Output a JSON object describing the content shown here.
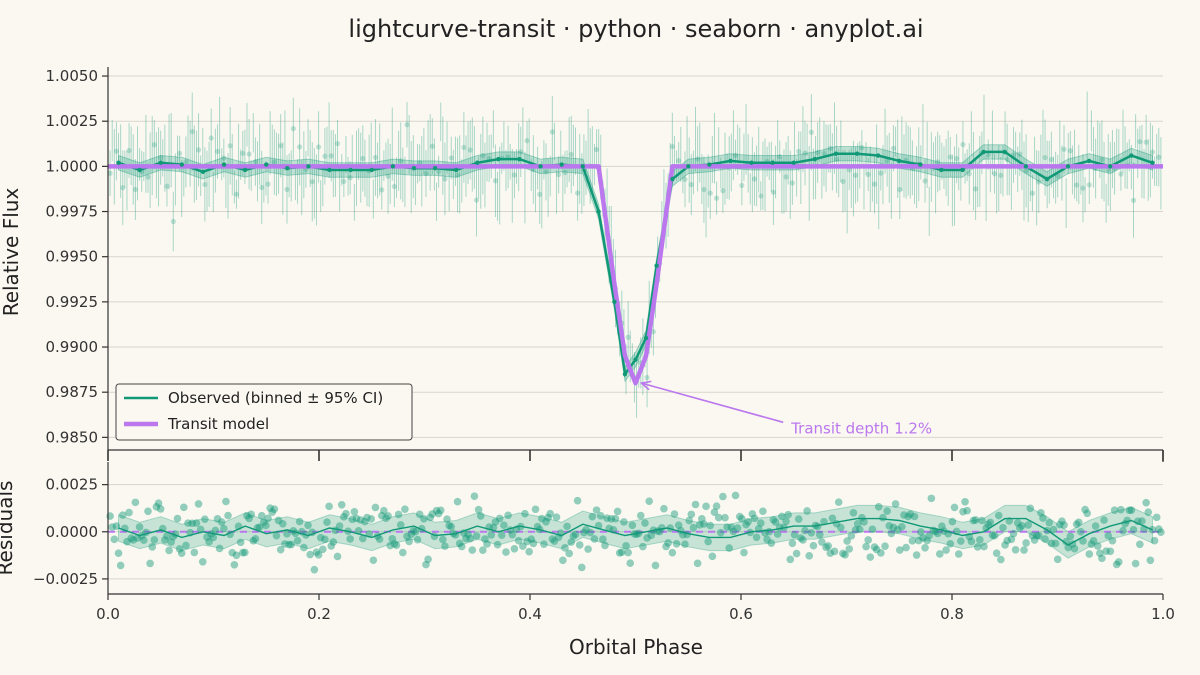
{
  "chart_data": [
    {
      "type": "line",
      "title": "lightcurve-transit · python · seaborn · anyplot.ai",
      "ylabel": "Relative Flux",
      "xlim": [
        0.0,
        1.0
      ],
      "ylim": [
        0.9843,
        1.0055
      ],
      "y_ticks": [
        0.985,
        0.9875,
        0.99,
        0.9925,
        0.995,
        0.9975,
        1.0,
        1.0025,
        1.005
      ],
      "y_tick_labels": [
        "0.9850",
        "0.9875",
        "0.9900",
        "0.9925",
        "0.9950",
        "0.9975",
        "1.0000",
        "1.0025",
        "1.0050"
      ],
      "grid": true,
      "legend_position": "lower-left",
      "colors": {
        "observed": "#119977",
        "model": "#BB77EE",
        "background": "#FAF8F1"
      },
      "series": [
        {
          "name": "Observed (binned ± 95% CI)",
          "x": [
            0.01,
            0.03,
            0.05,
            0.07,
            0.09,
            0.11,
            0.13,
            0.15,
            0.17,
            0.19,
            0.21,
            0.23,
            0.25,
            0.27,
            0.29,
            0.31,
            0.33,
            0.35,
            0.37,
            0.39,
            0.41,
            0.43,
            0.45,
            0.465,
            0.48,
            0.49,
            0.5,
            0.51,
            0.52,
            0.535,
            0.55,
            0.57,
            0.59,
            0.61,
            0.63,
            0.65,
            0.67,
            0.69,
            0.71,
            0.73,
            0.75,
            0.77,
            0.79,
            0.81,
            0.83,
            0.85,
            0.87,
            0.89,
            0.91,
            0.93,
            0.95,
            0.97,
            0.99
          ],
          "y": [
            1.0002,
            0.9998,
            1.0002,
            1.0001,
            0.9997,
            1.0001,
            0.9998,
            1.0001,
            0.9999,
            1.0,
            0.9998,
            0.9998,
            0.9998,
            1.0,
            0.9999,
            0.9999,
            0.9998,
            1.0002,
            1.0004,
            1.0004,
            1.0,
            1.0001,
            1.0,
            0.9975,
            0.9925,
            0.9885,
            0.9893,
            0.9905,
            0.9945,
            0.9993,
            1.0,
            1.0001,
            1.0003,
            1.0002,
            1.0002,
            1.0002,
            1.0004,
            1.0007,
            1.0007,
            1.0006,
            1.0003,
            1.0001,
            0.9998,
            0.9998,
            1.0008,
            1.0008,
            1.0,
            0.9993,
            1.0,
            1.0003,
            1.0,
            1.0006,
            1.0002
          ],
          "ci_halfwidth": 0.0004
        },
        {
          "name": "Transit model",
          "x": [
            0.0,
            0.465,
            0.48,
            0.49,
            0.5,
            0.51,
            0.52,
            0.535,
            1.0
          ],
          "y": [
            1.0,
            1.0,
            0.9935,
            0.9895,
            0.988,
            0.9895,
            0.9935,
            1.0,
            1.0
          ]
        }
      ],
      "annotations": [
        {
          "text": "Transit depth 1.2%",
          "x": 0.64,
          "y": 0.9855,
          "arrow_to": {
            "x": 0.5,
            "y": 0.988
          }
        }
      ]
    },
    {
      "type": "scatter",
      "xlabel": "Orbital Phase",
      "ylabel": "Residuals",
      "xlim": [
        0.0,
        1.0
      ],
      "ylim": [
        -0.0033,
        0.0037
      ],
      "x_ticks": [
        0.0,
        0.2,
        0.4,
        0.6,
        0.8,
        1.0
      ],
      "x_tick_labels": [
        "0.0",
        "0.2",
        "0.4",
        "0.6",
        "0.8",
        "1.0"
      ],
      "y_ticks": [
        -0.0025,
        0.0,
        0.0025
      ],
      "y_tick_labels": [
        "−0.0025",
        "0.0000",
        "0.0025"
      ],
      "grid": true,
      "zero_line": {
        "y": 0.0,
        "style": "dashed",
        "color": "#BB77EE"
      },
      "binned_residuals": {
        "x": [
          0.01,
          0.03,
          0.05,
          0.07,
          0.09,
          0.11,
          0.13,
          0.15,
          0.17,
          0.19,
          0.21,
          0.23,
          0.25,
          0.27,
          0.29,
          0.31,
          0.33,
          0.35,
          0.37,
          0.39,
          0.41,
          0.43,
          0.45,
          0.47,
          0.49,
          0.51,
          0.53,
          0.55,
          0.57,
          0.59,
          0.61,
          0.63,
          0.65,
          0.67,
          0.69,
          0.71,
          0.73,
          0.75,
          0.77,
          0.79,
          0.81,
          0.83,
          0.85,
          0.87,
          0.89,
          0.91,
          0.93,
          0.95,
          0.97,
          0.99
        ],
        "y": [
          0.0002,
          -0.0002,
          0.0001,
          -0.0003,
          0.0,
          -0.0002,
          0.0003,
          -0.0001,
          0.0001,
          -0.0002,
          0.0002,
          0.0,
          -0.0003,
          0.0001,
          0.0003,
          -0.0002,
          -0.0001,
          0.0003,
          0.0,
          0.0003,
          0.0001,
          -0.0002,
          0.0004,
          0.0001,
          -0.0002,
          0.0,
          0.0002,
          -0.0001,
          -0.0003,
          -0.0003,
          0.0,
          0.0001,
          0.0003,
          0.0003,
          0.0005,
          0.0007,
          0.0007,
          0.0006,
          0.0003,
          0.0001,
          -0.0002,
          0.0,
          0.0007,
          0.0007,
          0.0001,
          -0.0007,
          -0.0001,
          0.0003,
          0.0006,
          0.0001
        ],
        "ci_halfwidth": 0.0007
      }
    }
  ]
}
